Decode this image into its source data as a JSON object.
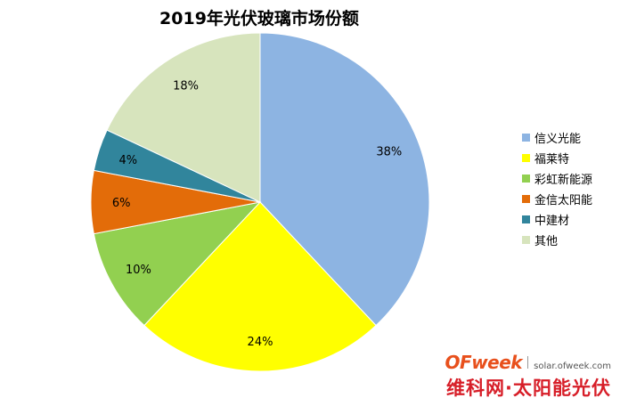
{
  "chart_data": {
    "type": "pie",
    "title": "2019年光伏玻璃市场份额",
    "categories": [
      "信义光能",
      "福莱特",
      "彩虹新能源",
      "金信太阳能",
      "中建材",
      "其他"
    ],
    "values": [
      38,
      24,
      10,
      6,
      4,
      18
    ],
    "data_labels": [
      "38%",
      "24%",
      "10%",
      "6%",
      "4%",
      "18%"
    ],
    "colors": [
      "#8db4e2",
      "#ffff00",
      "#92d050",
      "#e36c09",
      "#31859c",
      "#d7e4bd"
    ],
    "start_angle_deg": 0,
    "direction": "clockwise",
    "legend_position": "right"
  },
  "watermark": {
    "logo": "OFweek",
    "url": "solar.ofweek.com",
    "slogan": "维科网·太阳能光伏"
  }
}
